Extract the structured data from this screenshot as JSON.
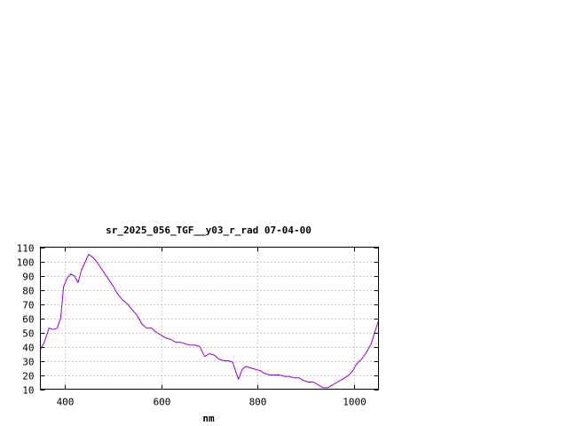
{
  "chart_data": {
    "type": "line",
    "title": "sr_2025_056_TGF__y03_r_rad 07-04-00",
    "xlabel": "nm",
    "ylabel": "",
    "xlim": [
      350,
      1050
    ],
    "ylim": [
      10,
      110
    ],
    "x_ticks": [
      400,
      600,
      800,
      1000
    ],
    "y_ticks": [
      10,
      20,
      30,
      40,
      50,
      60,
      70,
      80,
      90,
      100,
      110
    ],
    "grid": true,
    "legend": "none",
    "series": [
      {
        "color": "#9400d3",
        "x": [
          350,
          358,
          368,
          378,
          385,
          392,
          398,
          405,
          412,
          420,
          428,
          435,
          442,
          450,
          458,
          466,
          474,
          482,
          490,
          500,
          510,
          520,
          530,
          540,
          550,
          560,
          570,
          580,
          590,
          600,
          610,
          620,
          630,
          640,
          650,
          660,
          670,
          680,
          690,
          700,
          710,
          720,
          730,
          740,
          748,
          755,
          760,
          768,
          775,
          785,
          795,
          805,
          815,
          825,
          835,
          845,
          855,
          865,
          875,
          885,
          895,
          905,
          915,
          925,
          935,
          945,
          955,
          965,
          975,
          985,
          995,
          1005,
          1015,
          1025,
          1035,
          1042,
          1050
        ],
        "y": [
          38,
          43,
          53,
          52,
          53,
          60,
          82,
          88,
          91,
          90,
          85,
          94,
          99,
          105,
          103,
          100,
          96,
          92,
          88,
          83,
          77,
          73,
          70,
          66,
          62,
          56,
          53,
          53,
          50,
          48,
          46,
          45,
          43,
          43,
          42,
          41,
          41,
          40,
          33,
          35,
          34,
          31,
          30,
          30,
          29,
          22,
          17,
          24,
          26,
          25,
          24,
          23,
          21,
          20,
          20,
          20,
          19,
          19,
          18,
          18,
          16,
          15,
          15,
          13,
          11,
          11,
          13,
          15,
          17,
          19,
          22,
          28,
          31,
          36,
          42,
          50,
          58
        ]
      }
    ]
  }
}
